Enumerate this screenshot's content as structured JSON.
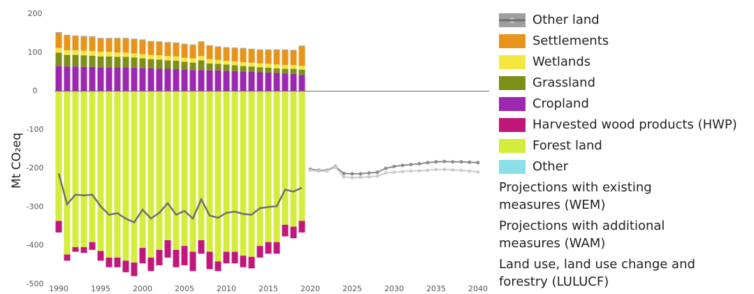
{
  "chart_data": {
    "type": "bar",
    "ylabel": "Mt CO₂eq",
    "legend": "right",
    "grid": false,
    "x": [
      1990,
      1991,
      1992,
      1993,
      1994,
      1995,
      1996,
      1997,
      1998,
      1999,
      2000,
      2001,
      2002,
      2003,
      2004,
      2005,
      2006,
      2007,
      2008,
      2009,
      2010,
      2011,
      2012,
      2013,
      2014,
      2015,
      2016,
      2017,
      2018,
      2019,
      2020,
      2021,
      2022,
      2023,
      2024,
      2025,
      2026,
      2027,
      2028,
      2029,
      2030,
      2031,
      2032,
      2033,
      2034,
      2035,
      2036,
      2037,
      2038,
      2039,
      2040
    ],
    "xlim": [
      1989.5,
      2040.5
    ],
    "xticks": [
      1990,
      1995,
      2000,
      2005,
      2010,
      2015,
      2020,
      2025,
      2030,
      2035,
      2040
    ],
    "ylim": [
      -500,
      200
    ],
    "yticks": [
      200,
      100,
      0,
      -100,
      -200,
      -300,
      -400,
      -500
    ],
    "series": [
      {
        "name": "Other land",
        "type": "bar",
        "color": "#9e9e9e",
        "values": [
          3,
          2,
          2,
          2,
          2,
          2,
          2,
          2,
          2,
          2,
          2,
          2,
          2,
          2,
          2,
          2,
          2,
          2,
          2,
          2,
          2,
          2,
          2,
          2,
          2,
          2,
          2,
          2,
          2,
          2,
          null,
          null,
          null,
          null,
          null,
          null,
          null,
          null,
          null,
          null,
          null,
          null,
          null,
          null,
          null,
          null,
          null,
          null,
          null,
          null,
          null
        ]
      },
      {
        "name": "Settlements",
        "type": "bar",
        "color": "#e8941a",
        "values": [
          38,
          38,
          36,
          36,
          36,
          34,
          34,
          36,
          36,
          36,
          36,
          34,
          34,
          34,
          34,
          34,
          34,
          36,
          34,
          33,
          33,
          34,
          35,
          34,
          34,
          35,
          37,
          38,
          37,
          50,
          null,
          null,
          null,
          null,
          null,
          null,
          null,
          null,
          null,
          null,
          null,
          null,
          null,
          null,
          null,
          null,
          null,
          null,
          null,
          null,
          null
        ]
      },
      {
        "name": "Wetlands",
        "type": "bar",
        "color": "#f6e640",
        "values": [
          12,
          12,
          12,
          12,
          12,
          12,
          12,
          11,
          11,
          11,
          11,
          11,
          11,
          11,
          11,
          11,
          11,
          11,
          11,
          10,
          10,
          10,
          10,
          10,
          10,
          10,
          10,
          10,
          10,
          10,
          null,
          null,
          null,
          null,
          null,
          null,
          null,
          null,
          null,
          null,
          null,
          null,
          null,
          null,
          null,
          null,
          null,
          null,
          null,
          null,
          null
        ]
      },
      {
        "name": "Grassland",
        "type": "bar",
        "color": "#7e8f19",
        "values": [
          35,
          30,
          30,
          30,
          29,
          28,
          28,
          27,
          27,
          26,
          25,
          24,
          24,
          22,
          22,
          20,
          19,
          25,
          18,
          17,
          16,
          15,
          14,
          14,
          13,
          13,
          12,
          12,
          13,
          14,
          null,
          null,
          null,
          null,
          null,
          null,
          null,
          null,
          null,
          null,
          null,
          null,
          null,
          null,
          null,
          null,
          null,
          null,
          null,
          null,
          null
        ]
      },
      {
        "name": "Cropland",
        "type": "bar",
        "color": "#9c27b0",
        "values": [
          65,
          64,
          64,
          63,
          63,
          62,
          62,
          62,
          62,
          61,
          60,
          59,
          58,
          58,
          57,
          56,
          55,
          55,
          54,
          54,
          53,
          52,
          51,
          50,
          49,
          48,
          47,
          46,
          45,
          42,
          null,
          null,
          null,
          null,
          null,
          null,
          null,
          null,
          null,
          null,
          null,
          null,
          null,
          null,
          null,
          null,
          null,
          null,
          null,
          null,
          null
        ]
      },
      {
        "name": "Harvested wood products (HWP)",
        "type": "bar",
        "color": "#c2177a",
        "values": [
          -30,
          -16,
          -12,
          -15,
          -20,
          -25,
          -25,
          -25,
          -30,
          -35,
          -40,
          -35,
          -40,
          -45,
          -45,
          -50,
          -50,
          -35,
          -45,
          -25,
          -30,
          -30,
          -30,
          -30,
          -30,
          -30,
          -30,
          -30,
          -30,
          -30,
          null,
          null,
          null,
          null,
          null,
          null,
          null,
          null,
          null,
          null,
          null,
          null,
          null,
          null,
          null,
          null,
          null,
          null,
          null,
          null,
          null
        ]
      },
      {
        "name": "Forest land",
        "type": "bar",
        "color": "#d4ec3c",
        "values": [
          -335,
          -422,
          -403,
          -403,
          -390,
          -413,
          -430,
          -430,
          -438,
          -443,
          -405,
          -430,
          -410,
          -385,
          -410,
          -400,
          -415,
          -385,
          -415,
          -440,
          -415,
          -415,
          -425,
          -428,
          -400,
          -390,
          -390,
          -345,
          -350,
          -335,
          null,
          null,
          null,
          null,
          null,
          null,
          null,
          null,
          null,
          null,
          null,
          null,
          null,
          null,
          null,
          null,
          null,
          null,
          null,
          null,
          null
        ]
      },
      {
        "name": "Other",
        "type": "bar",
        "color": "#8ae0e6",
        "values": [
          -1,
          -1,
          -1,
          -1,
          -1,
          -1,
          -1,
          -1,
          -1,
          -1,
          -1,
          -1,
          -1,
          -1,
          -1,
          -1,
          -1,
          -1,
          -1,
          -1,
          -1,
          -1,
          -1,
          -1,
          -1,
          -1,
          -1,
          -1,
          -1,
          -1,
          null,
          null,
          null,
          null,
          null,
          null,
          null,
          null,
          null,
          null,
          null,
          null,
          null,
          null,
          null,
          null,
          null,
          null,
          null,
          null,
          null
        ]
      },
      {
        "name": "Projections with existing measures (WEM)",
        "type": "line",
        "marker": true,
        "color": "#8c8c8c",
        "values": [
          null,
          null,
          null,
          null,
          null,
          null,
          null,
          null,
          null,
          null,
          null,
          null,
          null,
          null,
          null,
          null,
          null,
          null,
          null,
          null,
          null,
          null,
          null,
          null,
          null,
          null,
          null,
          null,
          null,
          null,
          -202,
          -205,
          -205,
          -195,
          -213,
          -214,
          -214,
          -212,
          -210,
          -200,
          -195,
          -192,
          -190,
          -188,
          -185,
          -183,
          -182,
          -183,
          -183,
          -184,
          -185
        ]
      },
      {
        "name": "Projections with additional measures (WAM)",
        "type": "line",
        "marker": true,
        "color": "#cccccc",
        "values": [
          null,
          null,
          null,
          null,
          null,
          null,
          null,
          null,
          null,
          null,
          null,
          null,
          null,
          null,
          null,
          null,
          null,
          null,
          null,
          null,
          null,
          null,
          null,
          null,
          null,
          null,
          null,
          null,
          null,
          null,
          -205,
          -207,
          -207,
          -197,
          -222,
          -224,
          -223,
          -222,
          -220,
          -212,
          -210,
          -208,
          -207,
          -206,
          -205,
          -203,
          -203,
          -204,
          -205,
          -207,
          -209
        ]
      },
      {
        "name": "Land use, land use change and forestry (LULUCF)",
        "type": "line",
        "marker": false,
        "color": "#707070",
        "values": [
          -213,
          -293,
          -268,
          -270,
          -268,
          -298,
          -320,
          -316,
          -330,
          -340,
          -307,
          -330,
          -315,
          -290,
          -320,
          -310,
          -330,
          -280,
          -322,
          -328,
          -315,
          -312,
          -318,
          -320,
          -303,
          -300,
          -298,
          -255,
          -260,
          -250,
          null,
          null,
          null,
          null,
          null,
          null,
          null,
          null,
          null,
          null,
          null,
          null,
          null,
          null,
          null,
          null,
          null,
          null,
          null,
          null,
          null
        ]
      }
    ]
  }
}
